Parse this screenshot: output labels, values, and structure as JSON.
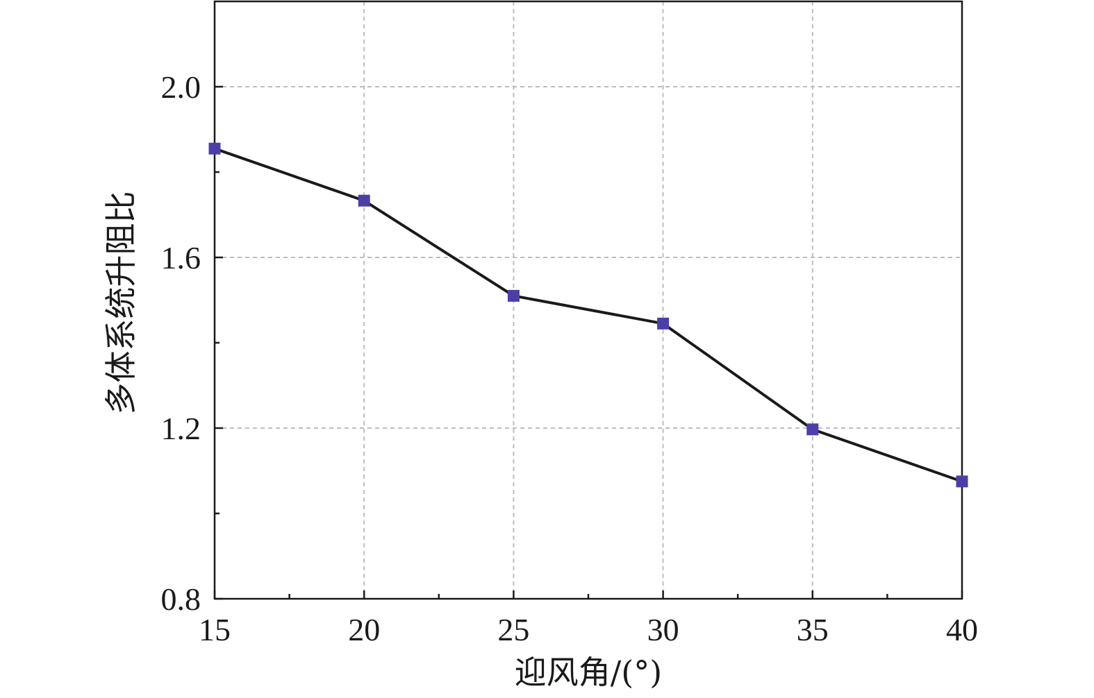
{
  "chart_data": {
    "type": "line",
    "title": "",
    "xlabel": "迎风角/(°)",
    "ylabel": "多体系统升阻比",
    "x": [
      15,
      20,
      25,
      30,
      35,
      40
    ],
    "series": [
      {
        "name": "",
        "values": [
          1.855,
          1.733,
          1.51,
          1.445,
          1.197,
          1.075
        ],
        "line_color": "#1a1a1a",
        "marker": "square",
        "marker_color": "#4b3fa6"
      }
    ],
    "xlim": [
      15,
      40
    ],
    "ylim": [
      0.8,
      2.2
    ],
    "xticks": [
      15,
      20,
      25,
      30,
      35,
      40
    ],
    "xtick_labels": [
      "15",
      "20",
      "25",
      "30",
      "35",
      "40"
    ],
    "x_minor_ticks": [
      17.5,
      22.5,
      27.5,
      32.5,
      37.5
    ],
    "yticks": [
      0.8,
      1.2,
      1.6,
      2.0
    ],
    "ytick_labels": [
      "0.8",
      "1.2",
      "1.6",
      "2.0"
    ],
    "y_minor_ticks": [
      1.0,
      1.4,
      1.8
    ],
    "grid": true,
    "grid_style": "dashed",
    "grid_color": "#bdbdbd",
    "legend": "none"
  }
}
